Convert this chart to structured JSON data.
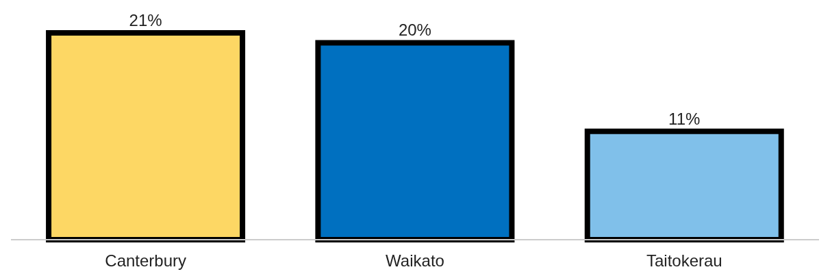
{
  "chart_data": {
    "type": "bar",
    "categories": [
      "Canterbury",
      "Waikato",
      "Taitokerau"
    ],
    "values": [
      21,
      20,
      11
    ],
    "colors": [
      "#fdd764",
      "#0070c0",
      "#80c0ea"
    ],
    "value_labels": [
      "21%",
      "20%",
      "11%"
    ]
  }
}
